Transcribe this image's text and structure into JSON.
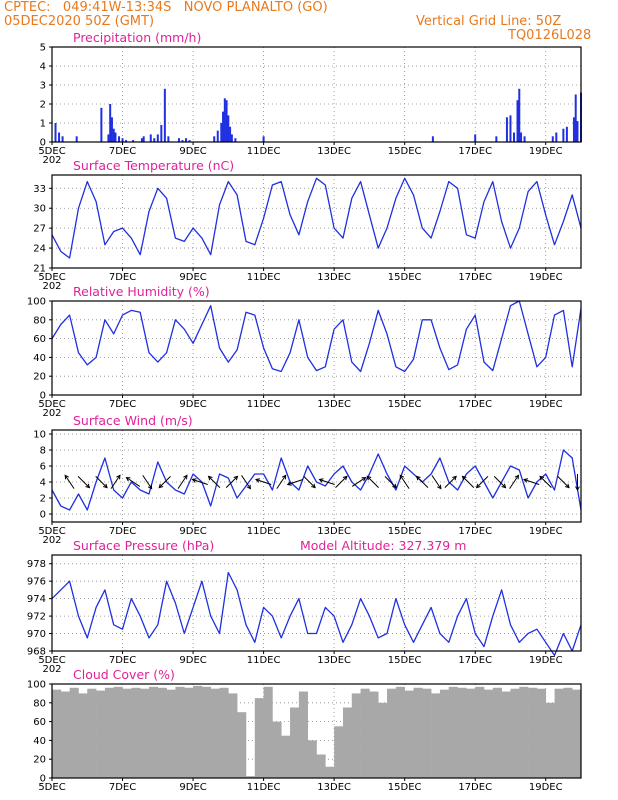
{
  "header": {
    "line1": "CPTEC:   049:41W-13:34S   NOVO PLANALTO (GO)",
    "line2": "05DEC2020 50Z (GMT)",
    "right1": "Vertical Grid Line: 50Z",
    "right2": "TQ0126L028"
  },
  "colors": {
    "header": "#e87a1e",
    "title": "#e0229a",
    "series": "#2030e0",
    "cloud": "#a8a8a8",
    "arrows": "#000000",
    "grid": "#888888"
  },
  "x_axis": {
    "ticks": [
      "5DEC",
      "7DEC",
      "9DEC",
      "11DEC",
      "13DEC",
      "15DEC",
      "17DEC",
      "19DEC"
    ],
    "tick_days": [
      0,
      2,
      4,
      6,
      8,
      10,
      12,
      14
    ],
    "cut_label": "202",
    "range_days": [
      0,
      15
    ]
  },
  "chart_data": [
    {
      "type": "bar",
      "title": "Precipitation (mm/h)",
      "ylim": [
        0,
        5
      ],
      "yticks": [
        0,
        1,
        2,
        3,
        4,
        5
      ],
      "x": [
        0.1,
        0.2,
        0.3,
        0.7,
        1.4,
        1.6,
        1.65,
        1.7,
        1.75,
        1.8,
        1.9,
        2.0,
        2.1,
        2.3,
        2.55,
        2.6,
        2.8,
        2.9,
        3.0,
        3.1,
        3.2,
        3.3,
        3.6,
        3.7,
        3.8,
        3.9,
        4.6,
        4.7,
        4.8,
        4.85,
        4.9,
        4.95,
        5.0,
        5.05,
        5.1,
        5.2,
        6.0,
        10.8,
        12.0,
        12.6,
        12.9,
        13.0,
        13.1,
        13.2,
        13.25,
        13.3,
        13.4,
        14.2,
        14.3,
        14.5,
        14.6,
        14.8,
        14.85,
        14.9,
        15.0
      ],
      "values": [
        1.0,
        0.5,
        0.3,
        0.3,
        1.8,
        0.4,
        2.0,
        1.3,
        0.7,
        0.5,
        0.3,
        0.2,
        0.1,
        0.1,
        0.2,
        0.3,
        0.4,
        0.2,
        0.4,
        0.9,
        2.8,
        0.3,
        0.2,
        0.1,
        0.2,
        0.1,
        0.3,
        0.6,
        1.0,
        1.6,
        2.3,
        2.2,
        1.4,
        0.8,
        0.4,
        0.2,
        0.3,
        0.3,
        0.4,
        0.3,
        1.3,
        1.4,
        0.5,
        2.2,
        2.8,
        0.5,
        0.3,
        0.3,
        0.5,
        0.7,
        0.8,
        1.3,
        2.5,
        1.1,
        2.6
      ],
      "ylabel": "",
      "xlabel": ""
    },
    {
      "type": "line",
      "title": "Surface Temperature (nC)",
      "ylim": [
        21,
        35
      ],
      "yticks": [
        21,
        24,
        27,
        30,
        33
      ],
      "x": [
        0,
        0.25,
        0.5,
        0.75,
        1,
        1.25,
        1.5,
        1.75,
        2,
        2.25,
        2.5,
        2.75,
        3,
        3.25,
        3.5,
        3.75,
        4,
        4.25,
        4.5,
        4.75,
        5,
        5.25,
        5.5,
        5.75,
        6,
        6.25,
        6.5,
        6.75,
        7,
        7.25,
        7.5,
        7.75,
        8,
        8.25,
        8.5,
        8.75,
        9,
        9.25,
        9.5,
        9.75,
        10,
        10.25,
        10.5,
        10.75,
        11,
        11.25,
        11.5,
        11.75,
        12,
        12.25,
        12.5,
        12.75,
        13,
        13.25,
        13.5,
        13.75,
        14,
        14.25,
        14.5,
        14.75,
        15
      ],
      "values": [
        26,
        23.5,
        22.5,
        30,
        34,
        31,
        24.5,
        26.5,
        27,
        25.5,
        23,
        29.5,
        33,
        31.5,
        25.5,
        25,
        27,
        25.5,
        23,
        30.5,
        34,
        32,
        25,
        24.5,
        28.5,
        33.5,
        34,
        29,
        26,
        31,
        34.5,
        33.5,
        27,
        25.5,
        31.5,
        34,
        29,
        24,
        27,
        31.5,
        34.5,
        32,
        27,
        25.5,
        29.5,
        34,
        33,
        26,
        25.5,
        31,
        34,
        28,
        24,
        27,
        32.5,
        34,
        29,
        24.5,
        28,
        32,
        27
      ],
      "ylabel": "",
      "xlabel": ""
    },
    {
      "type": "line",
      "title": "Relative Humidity (%)",
      "ylim": [
        0,
        100
      ],
      "yticks": [
        0,
        20,
        40,
        60,
        80,
        100
      ],
      "x": [
        0,
        0.25,
        0.5,
        0.75,
        1,
        1.25,
        1.5,
        1.75,
        2,
        2.25,
        2.5,
        2.75,
        3,
        3.25,
        3.5,
        3.75,
        4,
        4.25,
        4.5,
        4.75,
        5,
        5.25,
        5.5,
        5.75,
        6,
        6.25,
        6.5,
        6.75,
        7,
        7.25,
        7.5,
        7.75,
        8,
        8.25,
        8.5,
        8.75,
        9,
        9.25,
        9.5,
        9.75,
        10,
        10.25,
        10.5,
        10.75,
        11,
        11.25,
        11.5,
        11.75,
        12,
        12.25,
        12.5,
        12.75,
        13,
        13.25,
        13.5,
        13.75,
        14,
        14.25,
        14.5,
        14.75,
        15
      ],
      "values": [
        60,
        75,
        85,
        45,
        32,
        40,
        80,
        65,
        85,
        90,
        88,
        45,
        35,
        45,
        80,
        70,
        55,
        75,
        95,
        50,
        35,
        48,
        88,
        85,
        50,
        28,
        25,
        45,
        80,
        40,
        26,
        30,
        70,
        80,
        35,
        25,
        55,
        90,
        65,
        30,
        25,
        38,
        80,
        80,
        50,
        27,
        32,
        70,
        85,
        35,
        26,
        60,
        95,
        100,
        65,
        30,
        40,
        85,
        90,
        30,
        92
      ],
      "ylabel": "",
      "xlabel": ""
    },
    {
      "type": "line",
      "title": "Surface Wind (m/s)",
      "ylim": [
        -1,
        10.5
      ],
      "yticks": [
        0,
        2,
        4,
        6,
        8,
        10
      ],
      "x": [
        0,
        0.25,
        0.5,
        0.75,
        1,
        1.25,
        1.5,
        1.75,
        2,
        2.25,
        2.5,
        2.75,
        3,
        3.25,
        3.5,
        3.75,
        4,
        4.25,
        4.5,
        4.75,
        5,
        5.25,
        5.5,
        5.75,
        6,
        6.25,
        6.5,
        6.75,
        7,
        7.25,
        7.5,
        7.75,
        8,
        8.25,
        8.5,
        8.75,
        9,
        9.25,
        9.5,
        9.75,
        10,
        10.25,
        10.5,
        10.75,
        11,
        11.25,
        11.5,
        11.75,
        12,
        12.25,
        12.5,
        12.75,
        13,
        13.25,
        13.5,
        13.75,
        14,
        14.25,
        14.5,
        14.75,
        15
      ],
      "values": [
        3,
        1,
        0.5,
        2.5,
        0.5,
        4,
        7,
        3,
        2,
        4,
        3,
        2.5,
        6.5,
        4,
        3,
        2.5,
        5,
        4,
        1,
        5,
        4.5,
        2,
        3.5,
        5,
        5,
        3,
        7,
        4,
        3,
        6,
        4,
        3.5,
        5,
        6,
        4,
        3,
        5,
        7.5,
        5,
        3,
        6,
        5,
        4,
        5,
        7,
        4,
        3,
        5,
        6,
        4,
        2,
        4,
        6,
        5.5,
        2,
        4,
        5,
        3,
        8,
        7,
        0.5
      ],
      "ylabel": "",
      "xlabel": ""
    },
    {
      "type": "line",
      "title": "Surface Pressure (hPa)",
      "annotation": "Model Altitude: 327.379 m",
      "ylim": [
        968,
        979
      ],
      "yticks": [
        968,
        970,
        972,
        974,
        976,
        978
      ],
      "x": [
        0,
        0.25,
        0.5,
        0.75,
        1,
        1.25,
        1.5,
        1.75,
        2,
        2.25,
        2.5,
        2.75,
        3,
        3.25,
        3.5,
        3.75,
        4,
        4.25,
        4.5,
        4.75,
        5,
        5.25,
        5.5,
        5.75,
        6,
        6.25,
        6.5,
        6.75,
        7,
        7.25,
        7.5,
        7.75,
        8,
        8.25,
        8.5,
        8.75,
        9,
        9.25,
        9.5,
        9.75,
        10,
        10.25,
        10.5,
        10.75,
        11,
        11.25,
        11.5,
        11.75,
        12,
        12.25,
        12.5,
        12.75,
        13,
        13.25,
        13.5,
        13.75,
        14,
        14.25,
        14.5,
        14.75,
        15
      ],
      "values": [
        974,
        975,
        976,
        972,
        969.5,
        973,
        975,
        971,
        970.5,
        974,
        972,
        969.5,
        971,
        976,
        973.5,
        970,
        973,
        976,
        972,
        970,
        977,
        975,
        971,
        969,
        973,
        972,
        969.5,
        972,
        974,
        970,
        970,
        973,
        972,
        969,
        971,
        974,
        972,
        969.5,
        970,
        974,
        971,
        969,
        971,
        973,
        970,
        969,
        972,
        974,
        970,
        968.5,
        972,
        975,
        971,
        969,
        970,
        970.5,
        969,
        967.5,
        970,
        968,
        971
      ],
      "ylabel": "",
      "xlabel": ""
    },
    {
      "type": "area",
      "title": "Cloud Cover (%)",
      "ylim": [
        0,
        100
      ],
      "yticks": [
        0,
        20,
        40,
        60,
        80,
        100
      ],
      "x": [
        0,
        0.25,
        0.5,
        0.75,
        1,
        1.25,
        1.5,
        1.75,
        2,
        2.25,
        2.5,
        2.75,
        3,
        3.25,
        3.5,
        3.75,
        4,
        4.25,
        4.5,
        4.75,
        5,
        5.25,
        5.5,
        5.75,
        6,
        6.25,
        6.5,
        6.75,
        7,
        7.25,
        7.5,
        7.75,
        8,
        8.25,
        8.5,
        8.75,
        9,
        9.25,
        9.5,
        9.75,
        10,
        10.25,
        10.5,
        10.75,
        11,
        11.25,
        11.5,
        11.75,
        12,
        12.25,
        12.5,
        12.75,
        13,
        13.25,
        13.5,
        13.75,
        14,
        14.25,
        14.5,
        14.75,
        15
      ],
      "values": [
        94,
        92,
        96,
        90,
        95,
        93,
        96,
        97,
        95,
        96,
        95,
        97,
        96,
        94,
        97,
        96,
        98,
        97,
        95,
        96,
        90,
        70,
        2,
        85,
        97,
        60,
        45,
        75,
        92,
        40,
        25,
        12,
        55,
        75,
        90,
        95,
        92,
        80,
        95,
        97,
        93,
        96,
        95,
        90,
        94,
        97,
        96,
        95,
        97,
        94,
        96,
        92,
        95,
        97,
        96,
        95,
        80,
        95,
        96,
        94,
        97
      ],
      "ylabel": "",
      "xlabel": ""
    }
  ],
  "wind_vectors": {
    "x": [
      0.5,
      0.9,
      1.4,
      1.8,
      2.3,
      2.7,
      3.2,
      3.7,
      4.2,
      4.6,
      5.1,
      5.5,
      6.0,
      6.5,
      6.9,
      7.3,
      7.8,
      8.2,
      8.7,
      9.1,
      9.6,
      10.0,
      10.5,
      10.9,
      11.3,
      11.8,
      12.2,
      12.7,
      13.1,
      13.6,
      14.0,
      14.5,
      14.9
    ],
    "u": [
      -2,
      2,
      3,
      2,
      -3,
      2,
      -3,
      2,
      -3,
      -2,
      2,
      2,
      -3,
      2,
      -3,
      3,
      -3,
      3,
      3,
      -3,
      3,
      -2,
      -3,
      2,
      3,
      -3,
      -3,
      3,
      2,
      -3,
      -3,
      3,
      0
    ],
    "v": [
      3,
      -2,
      -3,
      3,
      2,
      -3,
      -3,
      3,
      1,
      2,
      2,
      -3,
      1,
      3,
      -1,
      -3,
      1,
      3,
      2,
      3,
      -3,
      3,
      3,
      -3,
      3,
      3,
      -3,
      -3,
      3,
      1,
      3,
      -3,
      -3
    ]
  }
}
